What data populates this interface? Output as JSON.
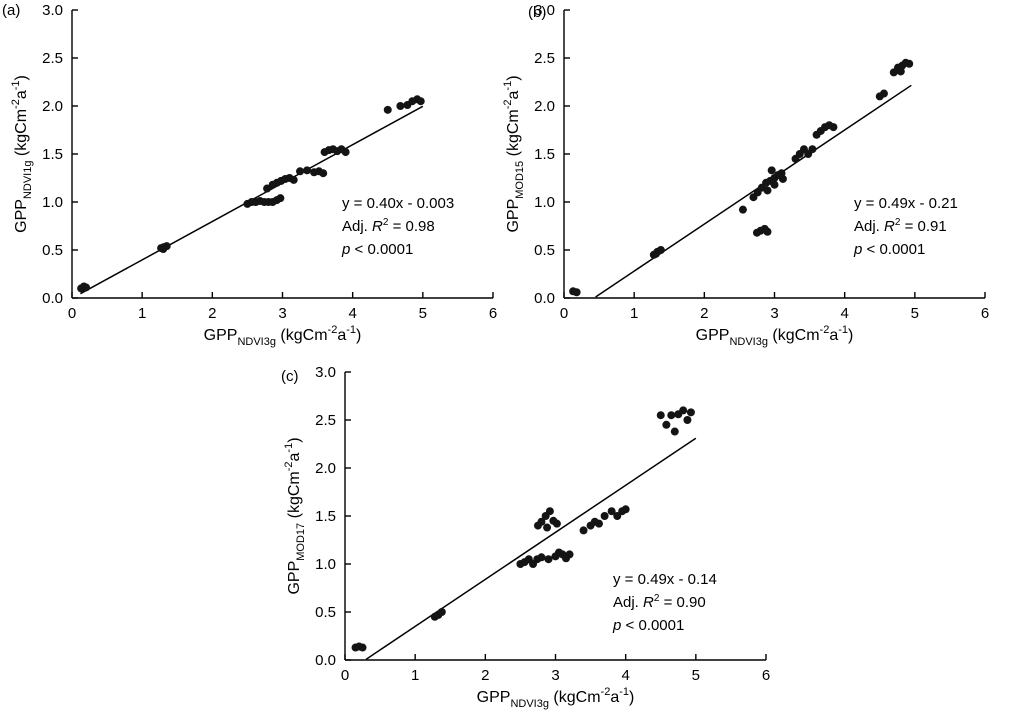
{
  "figure": {
    "background": "#ffffff",
    "point_color": "#141414",
    "line_color": "#000000",
    "axis_color": "#000000"
  },
  "chart_data": [
    {
      "type": "scatter",
      "panel_label": "(a)",
      "x_axis": {
        "min": 0,
        "max": 6,
        "tick_values": [
          0,
          1,
          2,
          3,
          4,
          5,
          6
        ],
        "tick_labels": [
          "0",
          "1",
          "2",
          "3",
          "4",
          "5",
          "6"
        ]
      },
      "y_axis": {
        "min": 0,
        "max": 3,
        "tick_values": [
          0,
          0.5,
          1,
          1.5,
          2,
          2.5,
          3
        ],
        "tick_labels": [
          "0.0",
          "0.5",
          "1.0",
          "1.5",
          "2.0",
          "2.5",
          "3.0"
        ]
      },
      "xlabel_segments": [
        {
          "t": "GPP"
        },
        {
          "t": "NDVI3g",
          "style": "sub"
        },
        {
          "t": " (kgCm"
        },
        {
          "t": "-2",
          "style": "sup"
        },
        {
          "t": "a"
        },
        {
          "t": "-1",
          "style": "sup"
        },
        {
          "t": ")"
        }
      ],
      "ylabel_segments": [
        {
          "t": "GPP"
        },
        {
          "t": "NDVI1g",
          "style": "sub"
        },
        {
          "t": " (kgCm"
        },
        {
          "t": "-2",
          "style": "sup"
        },
        {
          "t": "a"
        },
        {
          "t": "-1",
          "style": "sup"
        },
        {
          "t": ")"
        }
      ],
      "fit_line": {
        "slope": 0.4,
        "intercept": -0.003,
        "x_start": 0.12,
        "x_end": 5.0
      },
      "annotation": {
        "equation": "y = 0.40x - 0.003",
        "adj_label": "Adj. ",
        "r_symbol": "R",
        "r_exponent": "2",
        "r_value": " = 0.98",
        "p_symbol": "p",
        "p_value": " < 0.0001"
      },
      "points": [
        [
          0.13,
          0.1
        ],
        [
          0.17,
          0.12
        ],
        [
          0.2,
          0.11
        ],
        [
          1.27,
          0.52
        ],
        [
          1.31,
          0.53
        ],
        [
          1.35,
          0.54
        ],
        [
          1.3,
          0.51
        ],
        [
          2.5,
          0.98
        ],
        [
          2.56,
          1.0
        ],
        [
          2.62,
          1.0
        ],
        [
          2.68,
          1.01
        ],
        [
          2.74,
          1.0
        ],
        [
          2.8,
          1.0
        ],
        [
          2.86,
          1.0
        ],
        [
          2.92,
          1.02
        ],
        [
          2.97,
          1.04
        ],
        [
          2.78,
          1.14
        ],
        [
          2.86,
          1.18
        ],
        [
          2.92,
          1.2
        ],
        [
          2.98,
          1.22
        ],
        [
          3.04,
          1.24
        ],
        [
          3.1,
          1.25
        ],
        [
          3.16,
          1.23
        ],
        [
          3.25,
          1.32
        ],
        [
          3.35,
          1.33
        ],
        [
          3.45,
          1.31
        ],
        [
          3.52,
          1.32
        ],
        [
          3.58,
          1.3
        ],
        [
          3.6,
          1.52
        ],
        [
          3.66,
          1.54
        ],
        [
          3.72,
          1.55
        ],
        [
          3.78,
          1.53
        ],
        [
          3.84,
          1.55
        ],
        [
          3.9,
          1.52
        ],
        [
          4.5,
          1.96
        ],
        [
          4.68,
          2.0
        ],
        [
          4.78,
          2.01
        ],
        [
          4.85,
          2.05
        ],
        [
          4.92,
          2.07
        ],
        [
          4.97,
          2.05
        ]
      ]
    },
    {
      "type": "scatter",
      "panel_label": "(b)",
      "x_axis": {
        "min": 0,
        "max": 6,
        "tick_values": [
          0,
          1,
          2,
          3,
          4,
          5,
          6
        ],
        "tick_labels": [
          "0",
          "1",
          "2",
          "3",
          "4",
          "5",
          "6"
        ]
      },
      "y_axis": {
        "min": 0,
        "max": 3,
        "tick_values": [
          0,
          0.5,
          1,
          1.5,
          2,
          2.5,
          3
        ],
        "tick_labels": [
          "0.0",
          "0.5",
          "1.0",
          "1.5",
          "2.0",
          "2.5",
          "3.0"
        ]
      },
      "xlabel_segments": [
        {
          "t": "GPP"
        },
        {
          "t": "NDVI3g",
          "style": "sub"
        },
        {
          "t": " (kgCm"
        },
        {
          "t": "-2",
          "style": "sup"
        },
        {
          "t": "a"
        },
        {
          "t": "-1",
          "style": "sup"
        },
        {
          "t": ")"
        }
      ],
      "ylabel_segments": [
        {
          "t": "GPP"
        },
        {
          "t": "MOD15",
          "style": "sub"
        },
        {
          "t": " (kgCm"
        },
        {
          "t": "-2",
          "style": "sup"
        },
        {
          "t": "a"
        },
        {
          "t": "-1",
          "style": "sup"
        },
        {
          "t": ")"
        }
      ],
      "fit_line": {
        "slope": 0.49,
        "intercept": -0.21,
        "x_start": 0.45,
        "x_end": 4.95
      },
      "annotation": {
        "equation": "y = 0.49x - 0.21",
        "adj_label": "Adj. ",
        "r_symbol": "R",
        "r_exponent": "2",
        "r_value": " = 0.91",
        "p_symbol": "p",
        "p_value": " < 0.0001"
      },
      "points": [
        [
          0.13,
          0.07
        ],
        [
          0.18,
          0.06
        ],
        [
          1.28,
          0.45
        ],
        [
          1.33,
          0.48
        ],
        [
          1.38,
          0.5
        ],
        [
          1.31,
          0.46
        ],
        [
          2.55,
          0.92
        ],
        [
          2.75,
          0.68
        ],
        [
          2.8,
          0.7
        ],
        [
          2.86,
          0.72
        ],
        [
          2.9,
          0.69
        ],
        [
          2.7,
          1.05
        ],
        [
          2.76,
          1.1
        ],
        [
          2.82,
          1.15
        ],
        [
          2.88,
          1.2
        ],
        [
          2.94,
          1.22
        ],
        [
          3.0,
          1.25
        ],
        [
          3.05,
          1.28
        ],
        [
          3.1,
          1.3
        ],
        [
          2.9,
          1.12
        ],
        [
          3.0,
          1.18
        ],
        [
          3.12,
          1.24
        ],
        [
          2.96,
          1.33
        ],
        [
          3.3,
          1.45
        ],
        [
          3.36,
          1.5
        ],
        [
          3.42,
          1.55
        ],
        [
          3.48,
          1.5
        ],
        [
          3.54,
          1.55
        ],
        [
          3.6,
          1.7
        ],
        [
          3.66,
          1.74
        ],
        [
          3.72,
          1.78
        ],
        [
          3.78,
          1.8
        ],
        [
          3.84,
          1.78
        ],
        [
          4.5,
          2.1
        ],
        [
          4.56,
          2.13
        ],
        [
          4.7,
          2.35
        ],
        [
          4.76,
          2.4
        ],
        [
          4.82,
          2.42
        ],
        [
          4.87,
          2.45
        ],
        [
          4.92,
          2.44
        ],
        [
          4.8,
          2.36
        ]
      ]
    },
    {
      "type": "scatter",
      "panel_label": "(c)",
      "x_axis": {
        "min": 0,
        "max": 6,
        "tick_values": [
          0,
          1,
          2,
          3,
          4,
          5,
          6
        ],
        "tick_labels": [
          "0",
          "1",
          "2",
          "3",
          "4",
          "5",
          "6"
        ]
      },
      "y_axis": {
        "min": 0,
        "max": 3,
        "tick_values": [
          0,
          0.5,
          1,
          1.5,
          2,
          2.5,
          3
        ],
        "tick_labels": [
          "0.0",
          "0.5",
          "1.0",
          "1.5",
          "2.0",
          "2.5",
          "3.0"
        ]
      },
      "xlabel_segments": [
        {
          "t": "GPP"
        },
        {
          "t": "NDVI3g",
          "style": "sub"
        },
        {
          "t": " (kgCm"
        },
        {
          "t": "-2",
          "style": "sup"
        },
        {
          "t": "a"
        },
        {
          "t": "-1",
          "style": "sup"
        },
        {
          "t": ")"
        }
      ],
      "ylabel_segments": [
        {
          "t": "GPP"
        },
        {
          "t": "MOD17",
          "style": "sub"
        },
        {
          "t": " (kgCm"
        },
        {
          "t": "-2",
          "style": "sup"
        },
        {
          "t": "a"
        },
        {
          "t": "-1",
          "style": "sup"
        },
        {
          "t": ")"
        }
      ],
      "fit_line": {
        "slope": 0.49,
        "intercept": -0.14,
        "x_start": 0.3,
        "x_end": 5.0
      },
      "annotation": {
        "equation": "y = 0.49x - 0.14",
        "adj_label": "Adj. ",
        "r_symbol": "R",
        "r_exponent": "2",
        "r_value": " = 0.90",
        "p_symbol": "p",
        "p_value": " < 0.0001"
      },
      "points": [
        [
          0.15,
          0.13
        ],
        [
          0.2,
          0.14
        ],
        [
          0.25,
          0.13
        ],
        [
          1.28,
          0.45
        ],
        [
          1.33,
          0.47
        ],
        [
          1.38,
          0.5
        ],
        [
          2.5,
          1.0
        ],
        [
          2.56,
          1.02
        ],
        [
          2.62,
          1.05
        ],
        [
          2.68,
          1.0
        ],
        [
          2.74,
          1.05
        ],
        [
          2.8,
          1.07
        ],
        [
          2.75,
          1.4
        ],
        [
          2.8,
          1.44
        ],
        [
          2.86,
          1.5
        ],
        [
          2.92,
          1.55
        ],
        [
          2.97,
          1.45
        ],
        [
          3.02,
          1.42
        ],
        [
          2.88,
          1.38
        ],
        [
          2.9,
          1.05
        ],
        [
          3.0,
          1.08
        ],
        [
          3.1,
          1.1
        ],
        [
          3.2,
          1.1
        ],
        [
          3.15,
          1.06
        ],
        [
          3.05,
          1.12
        ],
        [
          3.4,
          1.35
        ],
        [
          3.5,
          1.4
        ],
        [
          3.56,
          1.44
        ],
        [
          3.62,
          1.42
        ],
        [
          3.7,
          1.5
        ],
        [
          3.8,
          1.55
        ],
        [
          3.88,
          1.5
        ],
        [
          3.95,
          1.55
        ],
        [
          4.0,
          1.57
        ],
        [
          4.5,
          2.55
        ],
        [
          4.58,
          2.45
        ],
        [
          4.65,
          2.55
        ],
        [
          4.7,
          2.38
        ],
        [
          4.75,
          2.56
        ],
        [
          4.82,
          2.6
        ],
        [
          4.88,
          2.5
        ],
        [
          4.93,
          2.58
        ]
      ]
    }
  ]
}
